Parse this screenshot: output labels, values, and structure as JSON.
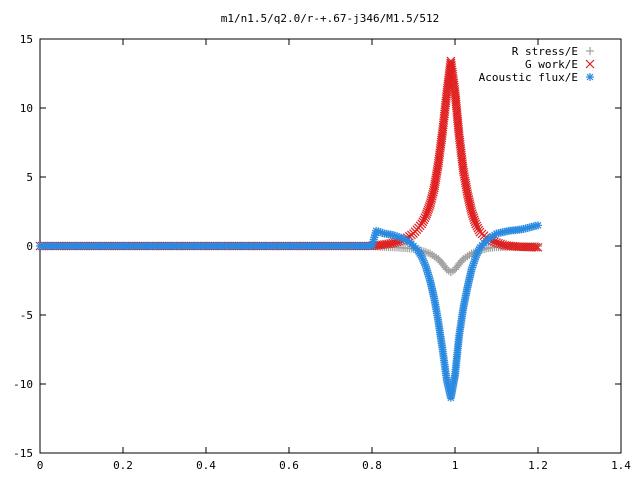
{
  "chart_data": {
    "type": "scatter",
    "title": "m1/n1.5/q2.0/r-+.67-j346/M1.5/512",
    "xlabel": "",
    "ylabel": "",
    "xlim": [
      0,
      1.4
    ],
    "ylim": [
      -15,
      15
    ],
    "x_ticks": [
      "0",
      "0.2",
      "0.4",
      "0.6",
      "0.8",
      "1",
      "1.2",
      "1.4"
    ],
    "y_ticks": [
      "15",
      "10",
      "5",
      "0",
      "-5",
      "-10",
      "-15"
    ],
    "legend_position": "top-right",
    "grid": false,
    "series": [
      {
        "name": "R stress/E",
        "marker": "plus",
        "color": "#a0a0a0",
        "points": [
          [
            0.0,
            0
          ],
          [
            0.1,
            0
          ],
          [
            0.2,
            0
          ],
          [
            0.3,
            0
          ],
          [
            0.4,
            0
          ],
          [
            0.5,
            0
          ],
          [
            0.6,
            0
          ],
          [
            0.7,
            0
          ],
          [
            0.8,
            0
          ],
          [
            0.82,
            -0.05
          ],
          [
            0.84,
            -0.08
          ],
          [
            0.86,
            -0.1
          ],
          [
            0.88,
            -0.15
          ],
          [
            0.9,
            -0.2
          ],
          [
            0.92,
            -0.35
          ],
          [
            0.94,
            -0.55
          ],
          [
            0.96,
            -0.95
          ],
          [
            0.97,
            -1.3
          ],
          [
            0.98,
            -1.7
          ],
          [
            0.99,
            -1.9
          ],
          [
            1.0,
            -1.7
          ],
          [
            1.01,
            -1.3
          ],
          [
            1.02,
            -0.95
          ],
          [
            1.04,
            -0.55
          ],
          [
            1.06,
            -0.3
          ],
          [
            1.08,
            -0.15
          ],
          [
            1.1,
            -0.08
          ],
          [
            1.14,
            -0.05
          ],
          [
            1.2,
            0
          ]
        ]
      },
      {
        "name": "G work/E",
        "marker": "cross",
        "color": "#e02020",
        "points": [
          [
            0.0,
            0
          ],
          [
            0.1,
            0
          ],
          [
            0.2,
            0
          ],
          [
            0.3,
            0
          ],
          [
            0.4,
            0
          ],
          [
            0.5,
            0
          ],
          [
            0.6,
            0
          ],
          [
            0.7,
            0
          ],
          [
            0.8,
            0
          ],
          [
            0.84,
            0.15
          ],
          [
            0.86,
            0.3
          ],
          [
            0.88,
            0.5
          ],
          [
            0.9,
            0.9
          ],
          [
            0.92,
            1.6
          ],
          [
            0.93,
            2.2
          ],
          [
            0.94,
            3.0
          ],
          [
            0.95,
            4.2
          ],
          [
            0.96,
            6.0
          ],
          [
            0.97,
            8.3
          ],
          [
            0.98,
            11.0
          ],
          [
            0.99,
            13.4
          ],
          [
            1.0,
            11.2
          ],
          [
            1.01,
            8.0
          ],
          [
            1.02,
            5.5
          ],
          [
            1.03,
            3.8
          ],
          [
            1.04,
            2.5
          ],
          [
            1.05,
            1.6
          ],
          [
            1.06,
            1.0
          ],
          [
            1.08,
            0.5
          ],
          [
            1.1,
            0.25
          ],
          [
            1.12,
            0.05
          ],
          [
            1.15,
            -0.05
          ],
          [
            1.2,
            -0.1
          ]
        ]
      },
      {
        "name": "Acoustic flux/E",
        "marker": "star",
        "color": "#2a8ae0",
        "points": [
          [
            0.0,
            0
          ],
          [
            0.1,
            0
          ],
          [
            0.2,
            0
          ],
          [
            0.3,
            0
          ],
          [
            0.4,
            0
          ],
          [
            0.5,
            0
          ],
          [
            0.6,
            0
          ],
          [
            0.7,
            0
          ],
          [
            0.8,
            0
          ],
          [
            0.81,
            1.1
          ],
          [
            0.83,
            0.9
          ],
          [
            0.85,
            0.8
          ],
          [
            0.87,
            0.6
          ],
          [
            0.89,
            0.3
          ],
          [
            0.91,
            -0.3
          ],
          [
            0.92,
            -0.8
          ],
          [
            0.93,
            -1.5
          ],
          [
            0.94,
            -2.5
          ],
          [
            0.95,
            -3.8
          ],
          [
            0.96,
            -5.5
          ],
          [
            0.97,
            -7.5
          ],
          [
            0.98,
            -9.7
          ],
          [
            0.99,
            -11.0
          ],
          [
            1.0,
            -9.4
          ],
          [
            1.01,
            -6.5
          ],
          [
            1.02,
            -4.5
          ],
          [
            1.03,
            -3.0
          ],
          [
            1.04,
            -1.7
          ],
          [
            1.05,
            -0.8
          ],
          [
            1.06,
            -0.1
          ],
          [
            1.08,
            0.5
          ],
          [
            1.1,
            0.9
          ],
          [
            1.13,
            1.1
          ],
          [
            1.16,
            1.2
          ],
          [
            1.2,
            1.5
          ]
        ]
      }
    ]
  }
}
